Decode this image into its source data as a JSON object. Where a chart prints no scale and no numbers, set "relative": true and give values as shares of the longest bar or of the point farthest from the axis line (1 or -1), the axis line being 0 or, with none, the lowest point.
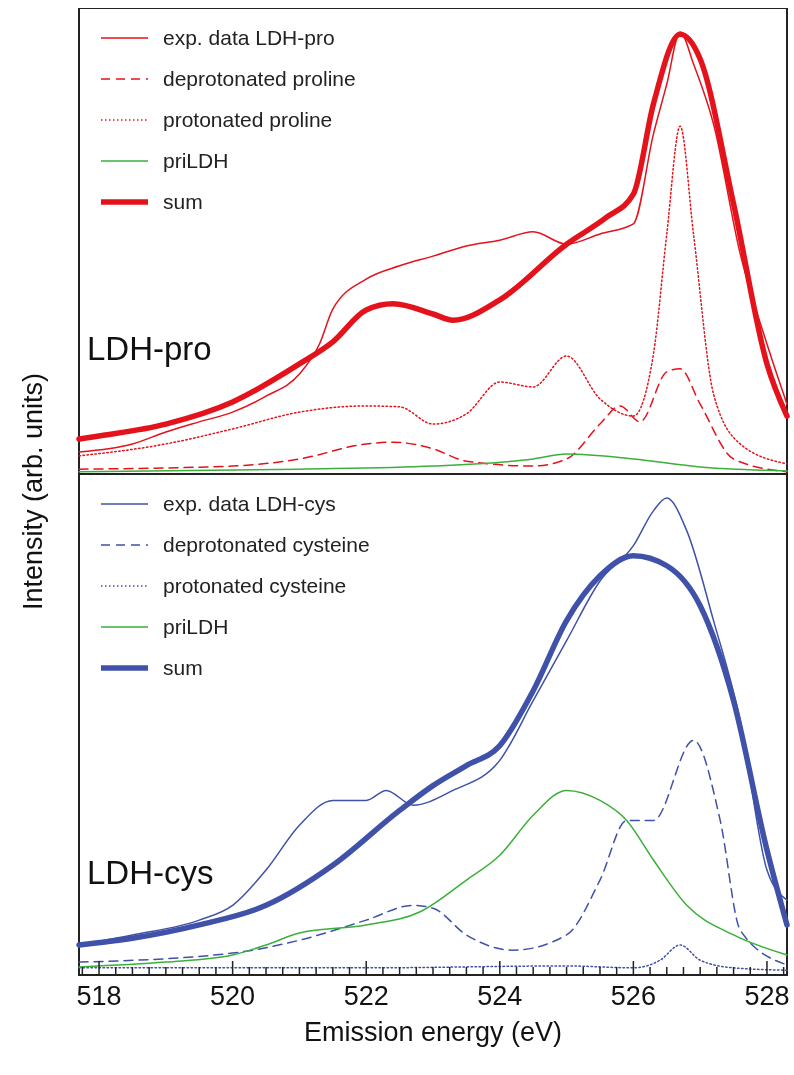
{
  "chart_data": [
    {
      "type": "line",
      "relative": true,
      "ylabel": "Intensity (arb. units)",
      "annotations": [
        "LDH-pro"
      ],
      "xlim": [
        517.7,
        528.3
      ],
      "tick_labels": false,
      "legend": "top left",
      "series": [
        {
          "name": "exp. data LDH-pro",
          "color": "#e3121b",
          "line_style": "solid",
          "x": [
            517.7,
            518.5,
            519,
            519.5,
            520,
            520.5,
            521,
            521.3,
            521.5,
            522,
            522.5,
            523,
            523.5,
            524,
            524.5,
            525,
            525.5,
            526,
            526.3,
            526.5,
            526.7,
            526.9,
            527.2,
            527.6,
            528,
            528.3
          ],
          "values": [
            0.05,
            0.068,
            0.095,
            0.118,
            0.14,
            0.176,
            0.226,
            0.294,
            0.373,
            0.441,
            0.471,
            0.493,
            0.516,
            0.529,
            0.548,
            0.52,
            0.543,
            0.566,
            0.769,
            0.882,
            1.0,
            0.928,
            0.792,
            0.498,
            0.294,
            0.158
          ]
        },
        {
          "name": "deprotonated proline",
          "color": "#e3121b",
          "line_style": "dashed",
          "x": [
            517.7,
            520,
            521,
            522,
            522.4,
            523,
            523.5,
            524.5,
            525,
            525.5,
            525.8,
            526.1,
            526.5,
            526.7,
            527,
            527.5,
            528.3
          ],
          "values": [
            0.011,
            0.018,
            0.034,
            0.068,
            0.072,
            0.057,
            0.029,
            0.018,
            0.034,
            0.113,
            0.154,
            0.118,
            0.231,
            0.238,
            0.158,
            0.034,
            0.005
          ]
        },
        {
          "name": "protonated proline",
          "color": "#e3121b",
          "line_style": "dotted",
          "x": [
            517.7,
            519,
            520,
            521,
            522,
            522.5,
            523,
            523.5,
            524,
            524.5,
            525,
            525.5,
            526,
            526.3,
            526.5,
            526.7,
            526.9,
            527.2,
            527.6,
            528.3
          ],
          "values": [
            0.041,
            0.068,
            0.102,
            0.14,
            0.154,
            0.152,
            0.113,
            0.136,
            0.208,
            0.197,
            0.267,
            0.17,
            0.131,
            0.271,
            0.543,
            0.787,
            0.543,
            0.181,
            0.068,
            0.023
          ]
        },
        {
          "name": "priLDH",
          "color": "#3ab03a",
          "line_style": "solid",
          "x": [
            517.7,
            521,
            523,
            524.5,
            525,
            526,
            527,
            528.3
          ],
          "values": [
            0.005,
            0.011,
            0.018,
            0.034,
            0.045,
            0.034,
            0.016,
            0.007
          ]
        },
        {
          "name": "sum",
          "color": "#e3121b",
          "line_style": "solid",
          "x": [
            517.7,
            518,
            519,
            520,
            521,
            521.5,
            522,
            522.4,
            523,
            523.3,
            524,
            525,
            525.6,
            526,
            526.3,
            526.7,
            527,
            527.5,
            528,
            528.3
          ],
          "values": [
            0.079,
            0.086,
            0.113,
            0.163,
            0.249,
            0.299,
            0.371,
            0.385,
            0.362,
            0.348,
            0.394,
            0.52,
            0.581,
            0.633,
            0.837,
            0.995,
            0.939,
            0.611,
            0.249,
            0.131
          ]
        }
      ]
    },
    {
      "type": "line",
      "relative": true,
      "xlabel": "Emission energy (eV)",
      "annotations": [
        "LDH-cys"
      ],
      "xlim": [
        517.7,
        528.3
      ],
      "tick_labels": "x",
      "legend": "top left",
      "xticks": [
        {
          "value": 517.75,
          "label": null
        },
        518,
        {
          "value": 518.25,
          "label": null
        },
        {
          "value": 518.5,
          "label": null
        },
        {
          "value": 518.75,
          "label": null
        },
        {
          "value": 519,
          "label": null
        },
        {
          "value": 519.25,
          "label": null
        },
        {
          "value": 519.5,
          "label": null
        },
        {
          "value": 519.75,
          "label": null
        },
        520,
        {
          "value": 520.25,
          "label": null
        },
        {
          "value": 520.5,
          "label": null
        },
        {
          "value": 520.75,
          "label": null
        },
        {
          "value": 521,
          "label": null
        },
        {
          "value": 521.25,
          "label": null
        },
        {
          "value": 521.5,
          "label": null
        },
        {
          "value": 521.75,
          "label": null
        },
        522,
        {
          "value": 522.25,
          "label": null
        },
        {
          "value": 522.5,
          "label": null
        },
        {
          "value": 522.75,
          "label": null
        },
        {
          "value": 523,
          "label": null
        },
        {
          "value": 523.25,
          "label": null
        },
        {
          "value": 523.5,
          "label": null
        },
        {
          "value": 523.75,
          "label": null
        },
        524,
        {
          "value": 524.25,
          "label": null
        },
        {
          "value": 524.5,
          "label": null
        },
        {
          "value": 524.75,
          "label": null
        },
        {
          "value": 525,
          "label": null
        },
        {
          "value": 525.25,
          "label": null
        },
        {
          "value": 525.5,
          "label": null
        },
        {
          "value": 525.75,
          "label": null
        },
        526,
        {
          "value": 526.25,
          "label": null
        },
        {
          "value": 526.5,
          "label": null
        },
        {
          "value": 526.75,
          "label": null
        },
        {
          "value": 527,
          "label": null
        },
        {
          "value": 527.25,
          "label": null
        },
        {
          "value": 527.5,
          "label": null
        },
        {
          "value": 527.75,
          "label": null
        },
        528,
        {
          "value": 528.25,
          "label": null
        }
      ],
      "series": [
        {
          "name": "exp. data LDH-cys",
          "color": "#3f51a8",
          "line_style": "solid",
          "x": [
            517.7,
            518.5,
            519.5,
            520,
            520.5,
            521,
            521.5,
            522,
            522.3,
            522.7,
            523.3,
            524,
            524.5,
            525,
            525.5,
            526,
            526.3,
            526.5,
            526.8,
            527.2,
            527.6,
            528,
            528.3
          ],
          "values": [
            0.063,
            0.084,
            0.115,
            0.146,
            0.22,
            0.314,
            0.366,
            0.366,
            0.387,
            0.356,
            0.387,
            0.45,
            0.575,
            0.701,
            0.826,
            0.9,
            0.973,
            1.0,
            0.931,
            0.743,
            0.533,
            0.22,
            0.157
          ]
        },
        {
          "name": "deprotonated cysteine",
          "color": "#3f51a8",
          "line_style": "dashed",
          "x": [
            517.7,
            520,
            521,
            522,
            522.7,
            523,
            523.5,
            524.2,
            525,
            525.5,
            525.9,
            526.3,
            526.9,
            527.3,
            527.6,
            528.3
          ],
          "values": [
            0.027,
            0.046,
            0.073,
            0.115,
            0.146,
            0.14,
            0.084,
            0.052,
            0.084,
            0.199,
            0.324,
            0.324,
            0.492,
            0.324,
            0.094,
            0.021
          ]
        },
        {
          "name": "protonated cysteine",
          "color": "#3f51a8",
          "line_style": "dotted",
          "x": [
            517.7,
            522,
            525,
            526,
            526.4,
            526.7,
            527,
            527.5,
            528.3
          ],
          "values": [
            0.015,
            0.015,
            0.019,
            0.015,
            0.031,
            0.063,
            0.031,
            0.015,
            0.01
          ]
        },
        {
          "name": "priLDH",
          "color": "#3ab03a",
          "line_style": "solid",
          "x": [
            517.7,
            519,
            520,
            520.5,
            521,
            522,
            522.8,
            523.5,
            524,
            524.5,
            525,
            525.5,
            525.9,
            526.3,
            526.8,
            527.5,
            528.3
          ],
          "values": [
            0.017,
            0.027,
            0.042,
            0.063,
            0.088,
            0.105,
            0.132,
            0.199,
            0.251,
            0.335,
            0.387,
            0.366,
            0.324,
            0.241,
            0.146,
            0.084,
            0.042
          ]
        },
        {
          "name": "sum",
          "color": "#3f51a8",
          "line_style": "solid",
          "x": [
            517.7,
            518.5,
            519.5,
            520.5,
            521.5,
            522.5,
            523,
            523.5,
            524,
            524.5,
            525,
            525.5,
            526,
            526.5,
            527,
            527.5,
            528,
            528.3
          ],
          "values": [
            0.063,
            0.077,
            0.105,
            0.146,
            0.23,
            0.345,
            0.397,
            0.439,
            0.481,
            0.596,
            0.743,
            0.837,
            0.879,
            0.858,
            0.774,
            0.575,
            0.262,
            0.105
          ]
        }
      ]
    }
  ]
}
